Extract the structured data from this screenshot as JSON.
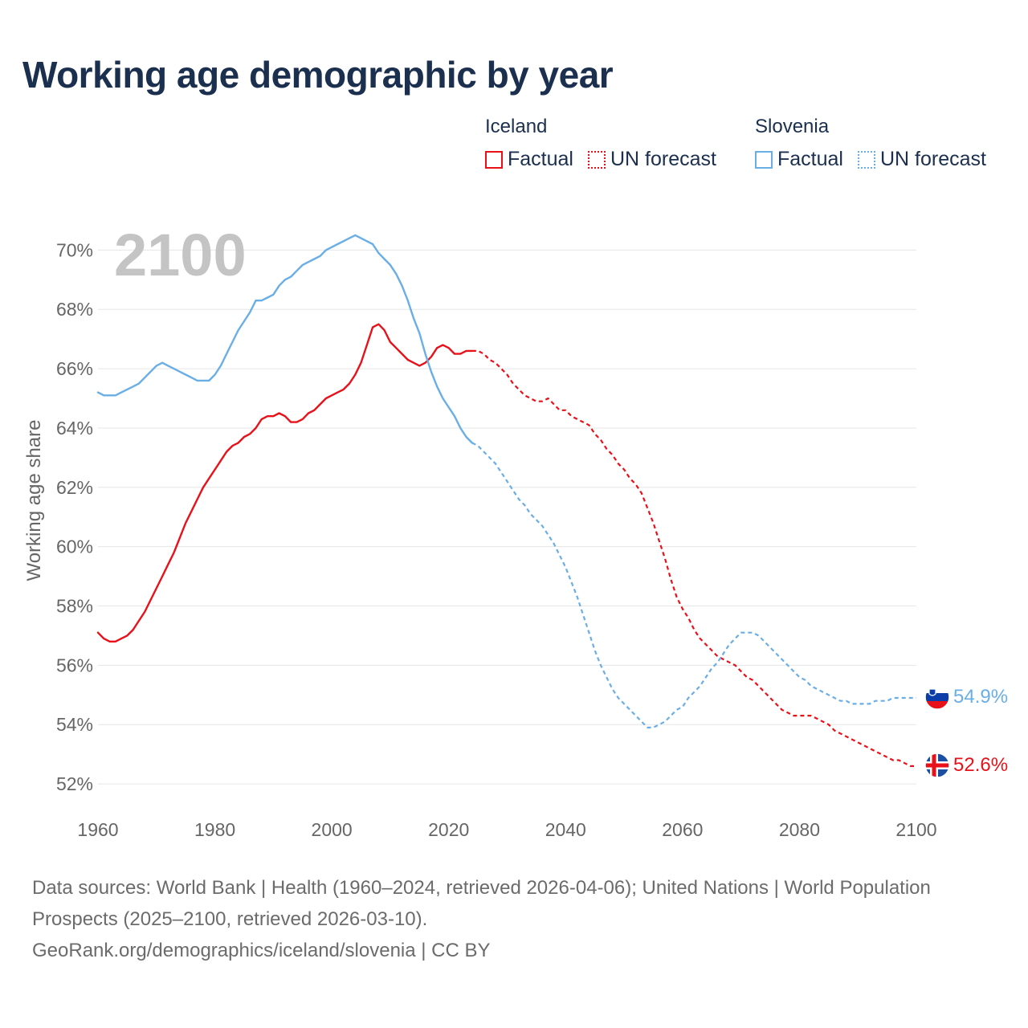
{
  "page": {
    "title": "Working age demographic by year",
    "footer_line1": "Data sources: World Bank | Health (1960–2024, retrieved 2026-04-06); United Nations | World Population Prospects (2025–2100, retrieved 2026-03-10).",
    "footer_line2": "GeoRank.org/demographics/iceland/slovenia | CC BY"
  },
  "legend": {
    "iceland": {
      "title": "Iceland",
      "factual": "Factual",
      "forecast": "UN forecast"
    },
    "slovenia": {
      "title": "Slovenia",
      "factual": "Factual",
      "forecast": "UN forecast"
    }
  },
  "chart_data": {
    "type": "line",
    "title": "Working age demographic by year",
    "year_label": "2100",
    "xlabel": "",
    "ylabel": "Working age share",
    "xlim": [
      1960,
      2100
    ],
    "ylim": [
      51,
      71.5
    ],
    "x_ticks": [
      "1960",
      "1980",
      "2000",
      "2020",
      "2040",
      "2060",
      "2080",
      "2100"
    ],
    "y_ticks": [
      {
        "value": 52,
        "label": "52%"
      },
      {
        "value": 54,
        "label": "54%"
      },
      {
        "value": 56,
        "label": "56%"
      },
      {
        "value": 58,
        "label": "58%"
      },
      {
        "value": 60,
        "label": "60%"
      },
      {
        "value": 62,
        "label": "62%"
      },
      {
        "value": 64,
        "label": "64%"
      },
      {
        "value": 66,
        "label": "66%"
      },
      {
        "value": 68,
        "label": "68%"
      },
      {
        "value": 70,
        "label": "70%"
      }
    ],
    "grid": true,
    "colors": {
      "iceland": "#e8111a",
      "slovenia": "#6aaee6",
      "grid": "#e6e6e6",
      "axis_text": "#666666",
      "year_label": "#c4c4c4"
    },
    "series": [
      {
        "name": "Iceland",
        "factual": [
          [
            1960,
            57.1
          ],
          [
            1961,
            56.9
          ],
          [
            1962,
            56.8
          ],
          [
            1963,
            56.8
          ],
          [
            1964,
            56.9
          ],
          [
            1965,
            57.0
          ],
          [
            1966,
            57.2
          ],
          [
            1967,
            57.5
          ],
          [
            1968,
            57.8
          ],
          [
            1969,
            58.2
          ],
          [
            1970,
            58.6
          ],
          [
            1971,
            59.0
          ],
          [
            1972,
            59.4
          ],
          [
            1973,
            59.8
          ],
          [
            1974,
            60.3
          ],
          [
            1975,
            60.8
          ],
          [
            1976,
            61.2
          ],
          [
            1977,
            61.6
          ],
          [
            1978,
            62.0
          ],
          [
            1979,
            62.3
          ],
          [
            1980,
            62.6
          ],
          [
            1981,
            62.9
          ],
          [
            1982,
            63.2
          ],
          [
            1983,
            63.4
          ],
          [
            1984,
            63.5
          ],
          [
            1985,
            63.7
          ],
          [
            1986,
            63.8
          ],
          [
            1987,
            64.0
          ],
          [
            1988,
            64.3
          ],
          [
            1989,
            64.4
          ],
          [
            1990,
            64.4
          ],
          [
            1991,
            64.5
          ],
          [
            1992,
            64.4
          ],
          [
            1993,
            64.2
          ],
          [
            1994,
            64.2
          ],
          [
            1995,
            64.3
          ],
          [
            1996,
            64.5
          ],
          [
            1997,
            64.6
          ],
          [
            1998,
            64.8
          ],
          [
            1999,
            65.0
          ],
          [
            2000,
            65.1
          ],
          [
            2001,
            65.2
          ],
          [
            2002,
            65.3
          ],
          [
            2003,
            65.5
          ],
          [
            2004,
            65.8
          ],
          [
            2005,
            66.2
          ],
          [
            2006,
            66.8
          ],
          [
            2007,
            67.4
          ],
          [
            2008,
            67.5
          ],
          [
            2009,
            67.3
          ],
          [
            2010,
            66.9
          ],
          [
            2011,
            66.7
          ],
          [
            2012,
            66.5
          ],
          [
            2013,
            66.3
          ],
          [
            2014,
            66.2
          ],
          [
            2015,
            66.1
          ],
          [
            2016,
            66.2
          ],
          [
            2017,
            66.4
          ],
          [
            2018,
            66.7
          ],
          [
            2019,
            66.8
          ],
          [
            2020,
            66.7
          ],
          [
            2021,
            66.5
          ],
          [
            2022,
            66.5
          ],
          [
            2023,
            66.6
          ],
          [
            2024,
            66.6
          ]
        ],
        "forecast": [
          [
            2024,
            66.6
          ],
          [
            2025,
            66.6
          ],
          [
            2026,
            66.5
          ],
          [
            2027,
            66.3
          ],
          [
            2028,
            66.2
          ],
          [
            2029,
            66.0
          ],
          [
            2030,
            65.8
          ],
          [
            2031,
            65.5
          ],
          [
            2032,
            65.3
          ],
          [
            2033,
            65.1
          ],
          [
            2034,
            65.0
          ],
          [
            2035,
            64.9
          ],
          [
            2036,
            64.9
          ],
          [
            2037,
            65.0
          ],
          [
            2038,
            64.8
          ],
          [
            2039,
            64.6
          ],
          [
            2040,
            64.6
          ],
          [
            2041,
            64.4
          ],
          [
            2042,
            64.3
          ],
          [
            2043,
            64.2
          ],
          [
            2044,
            64.1
          ],
          [
            2045,
            63.8
          ],
          [
            2046,
            63.6
          ],
          [
            2047,
            63.3
          ],
          [
            2048,
            63.1
          ],
          [
            2049,
            62.8
          ],
          [
            2050,
            62.6
          ],
          [
            2051,
            62.3
          ],
          [
            2052,
            62.1
          ],
          [
            2053,
            61.8
          ],
          [
            2054,
            61.3
          ],
          [
            2055,
            60.8
          ],
          [
            2056,
            60.2
          ],
          [
            2057,
            59.6
          ],
          [
            2058,
            58.9
          ],
          [
            2059,
            58.3
          ],
          [
            2060,
            57.9
          ],
          [
            2061,
            57.6
          ],
          [
            2062,
            57.2
          ],
          [
            2063,
            56.9
          ],
          [
            2064,
            56.7
          ],
          [
            2065,
            56.5
          ],
          [
            2066,
            56.3
          ],
          [
            2067,
            56.2
          ],
          [
            2068,
            56.1
          ],
          [
            2069,
            56.0
          ],
          [
            2070,
            55.8
          ],
          [
            2071,
            55.6
          ],
          [
            2072,
            55.5
          ],
          [
            2073,
            55.3
          ],
          [
            2074,
            55.1
          ],
          [
            2075,
            54.9
          ],
          [
            2076,
            54.7
          ],
          [
            2077,
            54.5
          ],
          [
            2078,
            54.4
          ],
          [
            2079,
            54.3
          ],
          [
            2080,
            54.3
          ],
          [
            2081,
            54.3
          ],
          [
            2082,
            54.3
          ],
          [
            2083,
            54.2
          ],
          [
            2084,
            54.1
          ],
          [
            2085,
            54.0
          ],
          [
            2086,
            53.8
          ],
          [
            2087,
            53.7
          ],
          [
            2088,
            53.6
          ],
          [
            2089,
            53.5
          ],
          [
            2090,
            53.4
          ],
          [
            2091,
            53.3
          ],
          [
            2092,
            53.2
          ],
          [
            2093,
            53.1
          ],
          [
            2094,
            53.0
          ],
          [
            2095,
            52.9
          ],
          [
            2096,
            52.8
          ],
          [
            2097,
            52.8
          ],
          [
            2098,
            52.7
          ],
          [
            2099,
            52.6
          ],
          [
            2100,
            52.6
          ]
        ],
        "end_label": "52.6%"
      },
      {
        "name": "Slovenia",
        "factual": [
          [
            1960,
            65.2
          ],
          [
            1961,
            65.1
          ],
          [
            1962,
            65.1
          ],
          [
            1963,
            65.1
          ],
          [
            1964,
            65.2
          ],
          [
            1965,
            65.3
          ],
          [
            1966,
            65.4
          ],
          [
            1967,
            65.5
          ],
          [
            1968,
            65.7
          ],
          [
            1969,
            65.9
          ],
          [
            1970,
            66.1
          ],
          [
            1971,
            66.2
          ],
          [
            1972,
            66.1
          ],
          [
            1973,
            66.0
          ],
          [
            1974,
            65.9
          ],
          [
            1975,
            65.8
          ],
          [
            1976,
            65.7
          ],
          [
            1977,
            65.6
          ],
          [
            1978,
            65.6
          ],
          [
            1979,
            65.6
          ],
          [
            1980,
            65.8
          ],
          [
            1981,
            66.1
          ],
          [
            1982,
            66.5
          ],
          [
            1983,
            66.9
          ],
          [
            1984,
            67.3
          ],
          [
            1985,
            67.6
          ],
          [
            1986,
            67.9
          ],
          [
            1987,
            68.3
          ],
          [
            1988,
            68.3
          ],
          [
            1989,
            68.4
          ],
          [
            1990,
            68.5
          ],
          [
            1991,
            68.8
          ],
          [
            1992,
            69.0
          ],
          [
            1993,
            69.1
          ],
          [
            1994,
            69.3
          ],
          [
            1995,
            69.5
          ],
          [
            1996,
            69.6
          ],
          [
            1997,
            69.7
          ],
          [
            1998,
            69.8
          ],
          [
            1999,
            70.0
          ],
          [
            2000,
            70.1
          ],
          [
            2001,
            70.2
          ],
          [
            2002,
            70.3
          ],
          [
            2003,
            70.4
          ],
          [
            2004,
            70.5
          ],
          [
            2005,
            70.4
          ],
          [
            2006,
            70.3
          ],
          [
            2007,
            70.2
          ],
          [
            2008,
            69.9
          ],
          [
            2009,
            69.7
          ],
          [
            2010,
            69.5
          ],
          [
            2011,
            69.2
          ],
          [
            2012,
            68.8
          ],
          [
            2013,
            68.3
          ],
          [
            2014,
            67.7
          ],
          [
            2015,
            67.2
          ],
          [
            2016,
            66.5
          ],
          [
            2017,
            65.9
          ],
          [
            2018,
            65.4
          ],
          [
            2019,
            65.0
          ],
          [
            2020,
            64.7
          ],
          [
            2021,
            64.4
          ],
          [
            2022,
            64.0
          ],
          [
            2023,
            63.7
          ],
          [
            2024,
            63.5
          ]
        ],
        "forecast": [
          [
            2024,
            63.5
          ],
          [
            2025,
            63.4
          ],
          [
            2026,
            63.2
          ],
          [
            2027,
            63.0
          ],
          [
            2028,
            62.8
          ],
          [
            2029,
            62.5
          ],
          [
            2030,
            62.2
          ],
          [
            2031,
            61.9
          ],
          [
            2032,
            61.6
          ],
          [
            2033,
            61.4
          ],
          [
            2034,
            61.1
          ],
          [
            2035,
            60.9
          ],
          [
            2036,
            60.7
          ],
          [
            2037,
            60.4
          ],
          [
            2038,
            60.1
          ],
          [
            2039,
            59.7
          ],
          [
            2040,
            59.3
          ],
          [
            2041,
            58.8
          ],
          [
            2042,
            58.3
          ],
          [
            2043,
            57.7
          ],
          [
            2044,
            57.1
          ],
          [
            2045,
            56.5
          ],
          [
            2046,
            56.0
          ],
          [
            2047,
            55.6
          ],
          [
            2048,
            55.2
          ],
          [
            2049,
            54.9
          ],
          [
            2050,
            54.7
          ],
          [
            2051,
            54.5
          ],
          [
            2052,
            54.3
          ],
          [
            2053,
            54.1
          ],
          [
            2054,
            53.9
          ],
          [
            2055,
            53.9
          ],
          [
            2056,
            54.0
          ],
          [
            2057,
            54.1
          ],
          [
            2058,
            54.3
          ],
          [
            2059,
            54.5
          ],
          [
            2060,
            54.6
          ],
          [
            2061,
            54.9
          ],
          [
            2062,
            55.1
          ],
          [
            2063,
            55.3
          ],
          [
            2064,
            55.6
          ],
          [
            2065,
            55.9
          ],
          [
            2066,
            56.1
          ],
          [
            2067,
            56.4
          ],
          [
            2068,
            56.7
          ],
          [
            2069,
            56.9
          ],
          [
            2070,
            57.1
          ],
          [
            2071,
            57.1
          ],
          [
            2072,
            57.1
          ],
          [
            2073,
            57.0
          ],
          [
            2074,
            56.8
          ],
          [
            2075,
            56.6
          ],
          [
            2076,
            56.4
          ],
          [
            2077,
            56.2
          ],
          [
            2078,
            56.0
          ],
          [
            2079,
            55.8
          ],
          [
            2080,
            55.6
          ],
          [
            2081,
            55.5
          ],
          [
            2082,
            55.3
          ],
          [
            2083,
            55.2
          ],
          [
            2084,
            55.1
          ],
          [
            2085,
            55.0
          ],
          [
            2086,
            54.9
          ],
          [
            2087,
            54.8
          ],
          [
            2088,
            54.8
          ],
          [
            2089,
            54.7
          ],
          [
            2090,
            54.7
          ],
          [
            2091,
            54.7
          ],
          [
            2092,
            54.7
          ],
          [
            2093,
            54.8
          ],
          [
            2094,
            54.8
          ],
          [
            2095,
            54.8
          ],
          [
            2096,
            54.9
          ],
          [
            2097,
            54.9
          ],
          [
            2098,
            54.9
          ],
          [
            2099,
            54.9
          ],
          [
            2100,
            54.9
          ]
        ],
        "end_label": "54.9%"
      }
    ]
  }
}
